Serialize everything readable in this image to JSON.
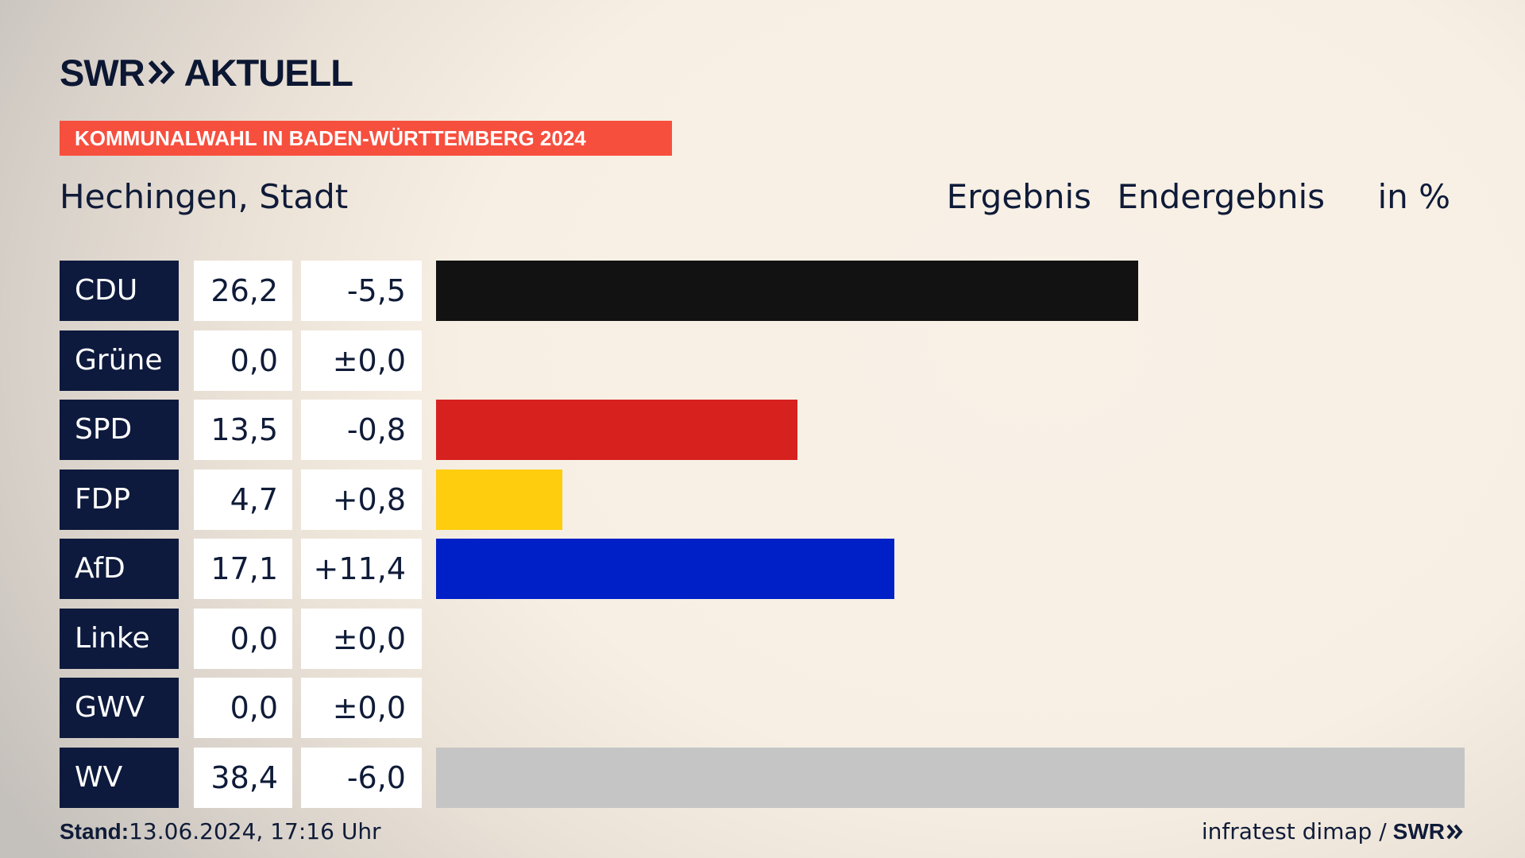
{
  "header": {
    "logo": {
      "brand": "SWR",
      "product": "AKTUELL"
    },
    "banner": "KOMMUNALWAHL IN BADEN-WÜRTTEMBERG 2024",
    "place": "Hechingen, Stadt",
    "column_result": "Ergebnis",
    "column_status": "Endergebnis",
    "unit": "in %"
  },
  "footer": {
    "stand_label": "Stand:",
    "stand_value": "13.06.2024, 17:16 Uhr",
    "source": "infratest dimap /",
    "source_brand": "SWR"
  },
  "chart_data": {
    "type": "bar",
    "orientation": "horizontal",
    "unit": "%",
    "xlim": [
      0,
      38.4
    ],
    "grid": false,
    "legend": "none",
    "categories": [
      "CDU",
      "Grüne",
      "SPD",
      "FDP",
      "AfD",
      "Linke",
      "GWV",
      "WV"
    ],
    "values": [
      26.2,
      0.0,
      13.5,
      4.7,
      17.1,
      0.0,
      0.0,
      38.4
    ],
    "value_labels": [
      "26,2",
      "0,0",
      "13,5",
      "4,7",
      "17,1",
      "0,0",
      "0,0",
      "38,4"
    ],
    "change_labels": [
      "-5,5",
      "±0,0",
      "-0,8",
      "+0,8",
      "+11,4",
      "±0,0",
      "±0,0",
      "-6,0"
    ],
    "colors": [
      "#121212",
      "#1f9a36",
      "#d7211f",
      "#fecd0d",
      "#0020c7",
      "#be3075",
      "#8f8f8f",
      "#c5c5c5"
    ]
  }
}
